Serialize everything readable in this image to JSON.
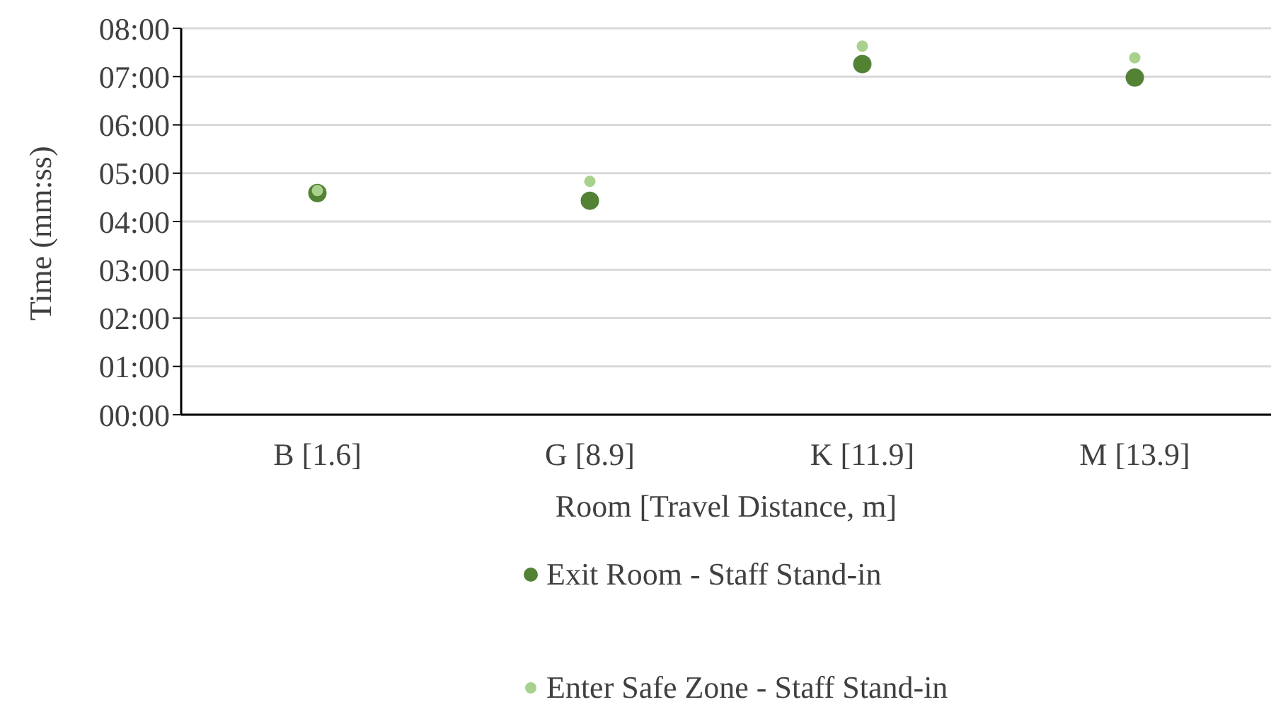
{
  "chart_data": {
    "type": "scatter",
    "xlabel": "Room [Travel Distance, m]",
    "ylabel": "Time (mm:ss)",
    "categories": [
      "B [1.6]",
      "G [8.9]",
      "K [11.9]",
      "M [13.9]"
    ],
    "series": [
      {
        "name": "Exit Room - Staff Stand-in",
        "color": "#548235",
        "values": [
          4.59,
          4.43,
          7.26,
          6.98
        ]
      },
      {
        "name": "Enter Safe Zone - Staff Stand-in",
        "color": "#a9d18e",
        "values": [
          4.64,
          4.83,
          7.63,
          7.39
        ]
      }
    ],
    "ylim": [
      0,
      8
    ],
    "yticks": [
      {
        "value": 0,
        "label": "00:00"
      },
      {
        "value": 1,
        "label": "01:00"
      },
      {
        "value": 2,
        "label": "02:00"
      },
      {
        "value": 3,
        "label": "03:00"
      },
      {
        "value": 4,
        "label": "04:00"
      },
      {
        "value": 5,
        "label": "05:00"
      },
      {
        "value": 6,
        "label": "06:00"
      },
      {
        "value": 7,
        "label": "07:00"
      },
      {
        "value": 8,
        "label": "08:00"
      }
    ],
    "grid": "y",
    "legend": "bottom",
    "marker": "circle"
  }
}
